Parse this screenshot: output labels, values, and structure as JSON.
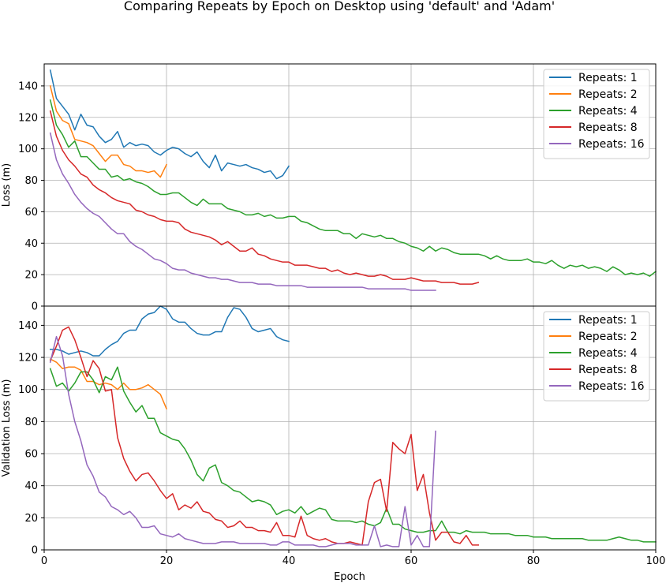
{
  "figure": {
    "title": "Comparing Repeats by Epoch on Desktop using 'default' and 'Adam'",
    "xlabel": "Epoch"
  },
  "chart_data": [
    {
      "type": "line",
      "title": "Comparing Repeats by Epoch on Desktop using 'default' and 'Adam'",
      "xlabel": "",
      "ylabel": "Loss (m)",
      "xlim": [
        0,
        100
      ],
      "ylim": [
        0,
        154
      ],
      "xticks": [
        0,
        20,
        40,
        60,
        80,
        100
      ],
      "yticks": [
        0,
        20,
        40,
        60,
        80,
        100,
        120,
        140
      ],
      "grid": true,
      "legend": "top-right",
      "series": [
        {
          "name": "Repeats: 1",
          "color": "#1f77b4",
          "x_start": 1,
          "values": [
            150,
            132,
            127,
            122,
            112,
            122,
            115,
            114,
            108,
            104,
            106,
            111,
            101,
            104,
            102,
            103,
            102,
            98,
            96,
            99,
            101,
            100,
            97,
            95,
            98,
            92,
            88,
            96,
            86,
            91,
            90,
            89,
            90,
            88,
            87,
            85,
            86,
            81,
            83,
            89
          ]
        },
        {
          "name": "Repeats: 2",
          "color": "#ff7f0e",
          "x_start": 1,
          "values": [
            140,
            124,
            118,
            116,
            106,
            105,
            104,
            102,
            97,
            92,
            96,
            96,
            90,
            89,
            86,
            86,
            85,
            86,
            82,
            90
          ]
        },
        {
          "name": "Repeats: 4",
          "color": "#2ca02c",
          "x_start": 1,
          "values": [
            131,
            115,
            109,
            101,
            105,
            95,
            95,
            91,
            87,
            87,
            82,
            83,
            80,
            81,
            79,
            78,
            76,
            73,
            71,
            71,
            72,
            72,
            69,
            66,
            64,
            68,
            65,
            65,
            65,
            62,
            61,
            60,
            58,
            58,
            59,
            57,
            58,
            56,
            56,
            57,
            57,
            54,
            53,
            51,
            49,
            48,
            48,
            48,
            46,
            46,
            43,
            46,
            45,
            44,
            45,
            43,
            43,
            41,
            40,
            38,
            37,
            35,
            38,
            35,
            37,
            36,
            34,
            33,
            33,
            33,
            33,
            32,
            30,
            32,
            30,
            29,
            29,
            29,
            30,
            28,
            28,
            27,
            29,
            26,
            24,
            26,
            25,
            26,
            24,
            25,
            24,
            22,
            25,
            23,
            20,
            21,
            20,
            21,
            19,
            22
          ]
        },
        {
          "name": "Repeats: 8",
          "color": "#d62728",
          "x_start": 1,
          "values": [
            124,
            108,
            99,
            93,
            89,
            84,
            82,
            77,
            74,
            72,
            69,
            67,
            66,
            65,
            61,
            60,
            58,
            57,
            55,
            54,
            54,
            53,
            49,
            47,
            46,
            45,
            44,
            42,
            39,
            41,
            38,
            35,
            35,
            37,
            33,
            32,
            30,
            29,
            28,
            28,
            26,
            26,
            26,
            25,
            24,
            24,
            22,
            23,
            21,
            20,
            21,
            20,
            19,
            19,
            20,
            19,
            17,
            17,
            17,
            18,
            17,
            16,
            16,
            16,
            15,
            15,
            15,
            14,
            14,
            14,
            15
          ]
        },
        {
          "name": "Repeats: 16",
          "color": "#9467bd",
          "x_start": 1,
          "values": [
            110,
            93,
            84,
            78,
            71,
            66,
            62,
            59,
            57,
            53,
            49,
            46,
            46,
            41,
            38,
            36,
            33,
            30,
            29,
            27,
            24,
            23,
            23,
            21,
            20,
            19,
            18,
            18,
            17,
            17,
            16,
            15,
            15,
            15,
            14,
            14,
            14,
            13,
            13,
            13,
            13,
            13,
            12,
            12,
            12,
            12,
            12,
            12,
            12,
            12,
            12,
            12,
            11,
            11,
            11,
            11,
            11,
            11,
            11,
            10,
            10,
            10,
            10,
            10
          ]
        }
      ]
    },
    {
      "type": "line",
      "title": "",
      "xlabel": "Epoch",
      "ylabel": "Validation Loss (m)",
      "xlim": [
        0,
        100
      ],
      "ylim": [
        0,
        152
      ],
      "xticks": [
        0,
        20,
        40,
        60,
        80,
        100
      ],
      "yticks": [
        0,
        20,
        40,
        60,
        80,
        100,
        120,
        140
      ],
      "grid": true,
      "legend": "top-right",
      "series": [
        {
          "name": "Repeats: 1",
          "color": "#1f77b4",
          "x_start": 1,
          "values": [
            125,
            125,
            124,
            122,
            123,
            124,
            123,
            121,
            121,
            125,
            128,
            130,
            135,
            137,
            137,
            144,
            147,
            148,
            152,
            150,
            144,
            142,
            142,
            138,
            135,
            134,
            134,
            136,
            136,
            145,
            151,
            150,
            145,
            138,
            136,
            137,
            138,
            133,
            131,
            130
          ]
        },
        {
          "name": "Repeats: 2",
          "color": "#ff7f0e",
          "x_start": 1,
          "values": [
            119,
            117,
            113,
            114,
            114,
            112,
            105,
            105,
            103,
            104,
            103,
            100,
            104,
            100,
            100,
            101,
            103,
            100,
            97,
            88
          ]
        },
        {
          "name": "Repeats: 4",
          "color": "#2ca02c",
          "x_start": 1,
          "values": [
            113,
            102,
            104,
            99,
            104,
            111,
            111,
            106,
            98,
            108,
            106,
            114,
            99,
            92,
            86,
            90,
            82,
            82,
            73,
            71,
            69,
            68,
            63,
            56,
            47,
            43,
            51,
            53,
            42,
            40,
            37,
            36,
            33,
            30,
            31,
            30,
            28,
            22,
            24,
            25,
            23,
            27,
            22,
            24,
            26,
            25,
            19,
            18,
            18,
            18,
            17,
            18,
            16,
            15,
            17,
            26,
            16,
            16,
            13,
            12,
            11,
            11,
            12,
            12,
            18,
            11,
            11,
            10,
            12,
            11,
            11,
            11,
            10,
            10,
            10,
            10,
            9,
            9,
            9,
            8,
            8,
            8,
            7,
            7,
            7,
            7,
            7,
            7,
            6,
            6,
            6,
            6,
            7,
            8,
            7,
            6,
            6,
            5,
            5,
            5
          ]
        },
        {
          "name": "Repeats: 8",
          "color": "#d62728",
          "x_start": 1,
          "values": [
            118,
            127,
            137,
            139,
            131,
            120,
            108,
            118,
            113,
            99,
            100,
            70,
            57,
            49,
            43,
            47,
            48,
            43,
            37,
            32,
            35,
            25,
            28,
            26,
            30,
            24,
            23,
            19,
            18,
            14,
            15,
            18,
            14,
            14,
            12,
            12,
            11,
            17,
            9,
            9,
            8,
            21,
            9,
            7,
            6,
            7,
            5,
            4,
            4,
            5,
            4,
            3,
            30,
            42,
            44,
            24,
            67,
            63,
            60,
            72,
            37,
            47,
            23,
            6,
            11,
            11,
            5,
            4,
            9,
            3,
            3
          ]
        },
        {
          "name": "Repeats: 16",
          "color": "#9467bd",
          "x_start": 1,
          "values": [
            117,
            133,
            121,
            97,
            80,
            68,
            53,
            46,
            36,
            33,
            27,
            25,
            22,
            24,
            20,
            14,
            14,
            15,
            10,
            9,
            8,
            10,
            7,
            6,
            5,
            4,
            4,
            4,
            5,
            5,
            5,
            4,
            4,
            4,
            4,
            4,
            3,
            3,
            5,
            5,
            3,
            3,
            3,
            3,
            2,
            2,
            3,
            4,
            4,
            4,
            3,
            3,
            3,
            15,
            2,
            3,
            2,
            2,
            27,
            3,
            9,
            2,
            2,
            74
          ]
        }
      ]
    }
  ]
}
